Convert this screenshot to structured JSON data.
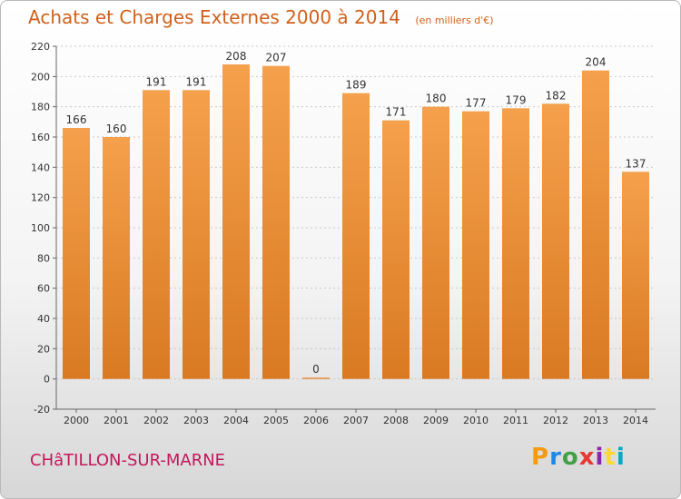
{
  "header": {
    "title": "Achats et Charges Externes 2000 à 2014",
    "unit": "(en milliers d'€)"
  },
  "footer": {
    "city": "CHâTILLON-SUR-MARNE",
    "logo_text": "Proxiti"
  },
  "colors": {
    "bar": "#f5a04c",
    "bar_dark": "#d97a22",
    "title": "#d0601a",
    "city": "#c2185b",
    "logo": [
      "#f39c12",
      "#1e88e5",
      "#43a047",
      "#e53935",
      "#8e24aa",
      "#fdd835",
      "#00acc1"
    ]
  },
  "chart_data": {
    "type": "bar",
    "categories": [
      "2000",
      "2001",
      "2002",
      "2003",
      "2004",
      "2005",
      "2006",
      "2007",
      "2008",
      "2009",
      "2010",
      "2011",
      "2012",
      "2013",
      "2014"
    ],
    "values": [
      166,
      160,
      191,
      191,
      208,
      207,
      0,
      189,
      171,
      180,
      177,
      179,
      182,
      204,
      137
    ],
    "ylim": [
      -20,
      220
    ],
    "yticks": [
      -20,
      0,
      20,
      40,
      60,
      80,
      100,
      120,
      140,
      160,
      180,
      200,
      220
    ],
    "grid": "horizontal dotted",
    "legend": "none"
  }
}
